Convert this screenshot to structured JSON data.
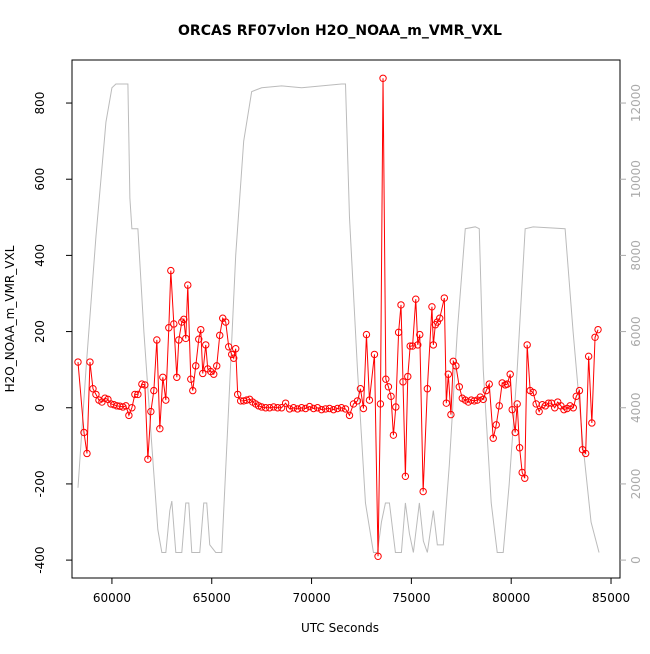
{
  "chart_data": {
    "type": "line",
    "title": "ORCAS RF07vlon H2O_NOAA_m_VMR_VXL",
    "xlabel": "UTC Seconds",
    "ylabel": "H2O_NOAA_m_VMR_VXL",
    "xlim": [
      58000,
      85450
    ],
    "xticks": [
      60000,
      65000,
      70000,
      75000,
      80000,
      85000
    ],
    "ylim": [
      -447,
      913
    ],
    "yticks": [
      -400,
      -200,
      0,
      200,
      400,
      600,
      800
    ],
    "y2lim": [
      -470,
      13130
    ],
    "y2ticks": [
      0,
      2000,
      4000,
      6000,
      8000,
      10000,
      12000
    ],
    "grid": false,
    "series": [
      {
        "color": "#bbbbbb",
        "axis": "y2",
        "marker": false,
        "x": [
          58300,
          58700,
          59200,
          59700,
          60000,
          60200,
          60800,
          60900,
          61000,
          61300,
          61600,
          62000,
          62300,
          62500,
          62700,
          62900,
          63000,
          63200,
          63500,
          63700,
          63850,
          64000,
          64400,
          64600,
          64750,
          64900,
          65200,
          65500,
          65800,
          66200,
          66600,
          67000,
          67500,
          68500,
          69500,
          70500,
          71500,
          71700,
          71900,
          72300,
          72700,
          73100,
          73300,
          73500,
          73700,
          73900,
          74200,
          74500,
          74700,
          74900,
          75100,
          75400,
          75600,
          75800,
          76100,
          76300,
          76600,
          76900,
          77300,
          77700,
          78200,
          78400,
          78600,
          79000,
          79300,
          79600,
          79900,
          80300,
          80700,
          81100,
          82700,
          83100,
          83600,
          84000,
          84400
        ],
        "values": [
          1900,
          5000,
          8500,
          11500,
          12400,
          12500,
          12500,
          9500,
          8700,
          8700,
          6000,
          3000,
          800,
          200,
          200,
          1300,
          1550,
          200,
          200,
          1500,
          1500,
          200,
          200,
          1500,
          1500,
          400,
          200,
          200,
          3500,
          8000,
          11000,
          12300,
          12400,
          12450,
          12400,
          12450,
          12500,
          12500,
          9000,
          5000,
          1500,
          200,
          200,
          1000,
          1500,
          1500,
          200,
          200,
          1500,
          700,
          200,
          1500,
          500,
          200,
          1300,
          400,
          400,
          2500,
          6000,
          8700,
          8750,
          8700,
          5000,
          1500,
          200,
          200,
          2000,
          5000,
          8700,
          8750,
          8700,
          6000,
          3000,
          1000,
          200
        ]
      },
      {
        "color": "#ff0000",
        "axis": "y",
        "marker": true,
        "x": [
          58300,
          58600,
          58750,
          58900,
          59050,
          59200,
          59350,
          59500,
          59650,
          59800,
          59950,
          60100,
          60250,
          60400,
          60550,
          60700,
          60850,
          61000,
          61150,
          61300,
          61500,
          61650,
          61800,
          61950,
          62100,
          62250,
          62400,
          62550,
          62700,
          62850,
          62950,
          63100,
          63250,
          63350,
          63500,
          63600,
          63700,
          63800,
          63950,
          64050,
          64200,
          64350,
          64450,
          64550,
          64700,
          64800,
          64950,
          65100,
          65250,
          65400,
          65550,
          65700,
          65850,
          66000,
          66100,
          66200,
          66300,
          66450,
          66600,
          66750,
          66900,
          67050,
          67200,
          67350,
          67500,
          67700,
          67900,
          68100,
          68300,
          68500,
          68700,
          68900,
          69100,
          69300,
          69500,
          69700,
          69900,
          70100,
          70300,
          70500,
          70700,
          70900,
          71100,
          71300,
          71500,
          71700,
          71900,
          72100,
          72300,
          72450,
          72600,
          72750,
          72900,
          73150,
          73330,
          73450,
          73580,
          73720,
          73850,
          73980,
          74100,
          74220,
          74360,
          74480,
          74580,
          74700,
          74820,
          74940,
          75060,
          75220,
          75320,
          75420,
          75590,
          75800,
          76030,
          76100,
          76200,
          76300,
          76420,
          76650,
          76750,
          76850,
          76980,
          77100,
          77230,
          77400,
          77550,
          77700,
          77850,
          78000,
          78150,
          78300,
          78450,
          78600,
          78750,
          78900,
          79100,
          79250,
          79400,
          79550,
          79700,
          79800,
          79950,
          80050,
          80200,
          80300,
          80420,
          80550,
          80680,
          80800,
          80950,
          81100,
          81250,
          81400,
          81560,
          81710,
          81870,
          82020,
          82180,
          82330,
          82490,
          82640,
          82800,
          82950,
          83110,
          83260,
          83420,
          83570,
          83730,
          83880,
          84040,
          84200,
          84350
        ],
        "values": [
          120,
          -65,
          -120,
          120,
          50,
          35,
          20,
          15,
          25,
          22,
          10,
          8,
          5,
          4,
          2,
          5,
          -20,
          0,
          35,
          35,
          62,
          60,
          -135,
          -10,
          45,
          178,
          -55,
          80,
          20,
          210,
          360,
          220,
          80,
          178,
          225,
          232,
          182,
          322,
          75,
          45,
          110,
          180,
          205,
          90,
          165,
          102,
          95,
          88,
          110,
          190,
          235,
          225,
          160,
          140,
          130,
          155,
          35,
          18,
          18,
          20,
          22,
          15,
          10,
          5,
          2,
          0,
          0,
          2,
          0,
          0,
          12,
          -3,
          0,
          -3,
          0,
          -2,
          3,
          -2,
          0,
          -5,
          -3,
          -2,
          -5,
          -2,
          0,
          -3,
          -20,
          10,
          18,
          50,
          -2,
          192,
          20,
          140,
          -390,
          10,
          865,
          75,
          55,
          30,
          -72,
          2,
          198,
          270,
          68,
          -180,
          82,
          162,
          162,
          285,
          165,
          192,
          -220,
          50,
          265,
          165,
          218,
          225,
          235,
          288,
          12,
          88,
          -18,
          122,
          110,
          55,
          25,
          20,
          15,
          20,
          18,
          20,
          28,
          22,
          45,
          62,
          -80,
          -45,
          5,
          65,
          60,
          62,
          88,
          -5,
          -65,
          10,
          -105,
          -170,
          -185,
          165,
          45,
          40,
          10,
          -10,
          8,
          5,
          12,
          12,
          0,
          15,
          5,
          -5,
          -2,
          5,
          0,
          30,
          45,
          -110,
          -120,
          135,
          -40,
          185,
          205
        ]
      }
    ]
  }
}
